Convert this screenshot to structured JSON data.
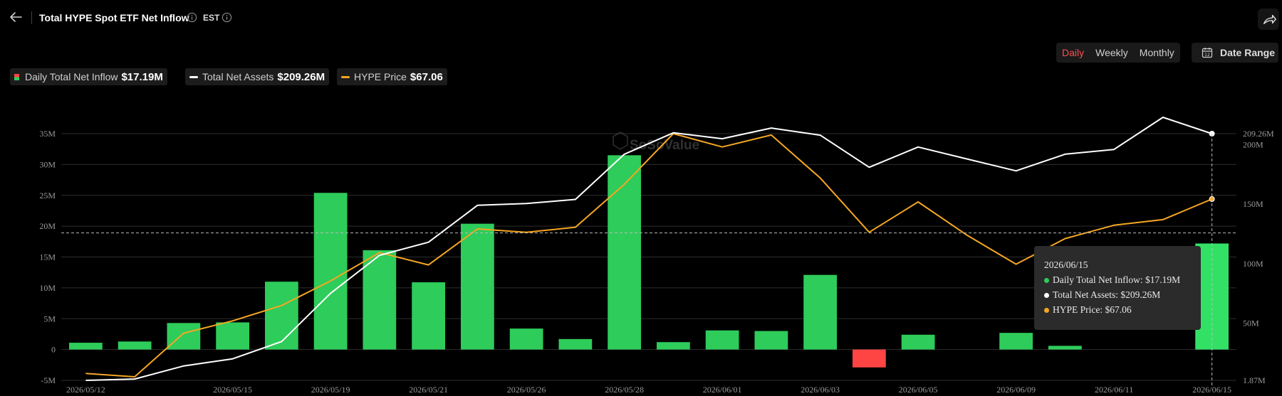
{
  "header": {
    "title": "Total HYPE Spot ETF Net Inflow",
    "timezone": "EST"
  },
  "controls": {
    "periods": [
      "Daily",
      "Weekly",
      "Monthly"
    ],
    "active_period": "Daily",
    "date_range_label": "Date Range"
  },
  "legend": [
    {
      "label": "Daily Total Net Inflow",
      "value": "$17.19M"
    },
    {
      "label": "Total Net Assets",
      "value": "$209.26M",
      "color": "#ffffff"
    },
    {
      "label": "HYPE Price",
      "value": "$67.06",
      "color": "#f5a623"
    }
  ],
  "watermark": "SoSoValue",
  "tooltip": {
    "date": "2026/06/15",
    "rows": [
      {
        "text": "Daily Total Net Inflow: $17.19M",
        "color": "#2ecc5a"
      },
      {
        "text": "Total Net Assets: $209.26M",
        "color": "#ffffff"
      },
      {
        "text": "HYPE Price: $67.06",
        "color": "#f5a623"
      }
    ]
  },
  "chart_data": {
    "type": "bar",
    "title": "Total HYPE Spot ETF Net Inflow",
    "categories": [
      "2026/05/12",
      "2026/05/13",
      "2026/05/14",
      "2026/05/15",
      "2026/05/18",
      "2026/05/19",
      "2026/05/20",
      "2026/05/21",
      "2026/05/22",
      "2026/05/26",
      "2026/05/27",
      "2026/05/28",
      "2026/05/29",
      "2026/06/01",
      "2026/06/02",
      "2026/06/03",
      "2026/06/04",
      "2026/06/05",
      "2026/06/08",
      "2026/06/09",
      "2026/06/10",
      "2026/06/11",
      "2026/06/12",
      "2026/06/15"
    ],
    "x_tick_labels": [
      "2026/05/12",
      "2026/05/15",
      "2026/05/19",
      "2026/05/21",
      "2026/05/26",
      "2026/05/28",
      "2026/06/01",
      "2026/06/03",
      "2026/06/05",
      "2026/06/09",
      "2026/06/11",
      "2026/06/15"
    ],
    "series": [
      {
        "name": "Daily Total Net Inflow",
        "type": "bar",
        "axis": "left",
        "values": [
          1.1,
          1.3,
          4.3,
          4.4,
          11.0,
          25.4,
          16.1,
          10.9,
          20.4,
          3.4,
          1.7,
          31.5,
          1.2,
          3.1,
          3.0,
          12.1,
          -2.9,
          2.4,
          0,
          2.7,
          0.6,
          0,
          0,
          17.19
        ],
        "positive_color": "#2ecc5a",
        "negative_color": "#ff4444"
      },
      {
        "name": "Total Net Assets",
        "type": "line",
        "axis": "right",
        "color": "#ffffff",
        "values": [
          1.87,
          3.0,
          14.0,
          20.0,
          34.5,
          75.0,
          107.0,
          118.0,
          149.0,
          150.5,
          154.0,
          192.0,
          210.0,
          205.0,
          214.0,
          208.0,
          181.0,
          198.0,
          188.0,
          178.0,
          192.0,
          196.0,
          223.0,
          209.26
        ]
      },
      {
        "name": "HYPE Price",
        "type": "line",
        "axis": "hidden",
        "color": "#f5a623",
        "values": [
          14.7,
          13.7,
          26.8,
          30.5,
          35.1,
          42.5,
          51.0,
          47.3,
          58.1,
          57.1,
          58.6,
          71.5,
          86.7,
          82.7,
          86.3,
          73.4,
          57.1,
          66.2,
          56.2,
          47.5,
          55.2,
          59.2,
          60.9,
          67.06
        ]
      }
    ],
    "ylim_left": [
      -5,
      35
    ],
    "yticks_left": [
      "35M",
      "30M",
      "25M",
      "20M",
      "15M",
      "10M",
      "5M",
      "0",
      "-5M"
    ],
    "ylim_right": [
      1.87,
      209.26
    ],
    "yticks_right": [
      "209.26M",
      "200M",
      "150M",
      "100M",
      "50M",
      "1.87M"
    ],
    "price_range": [
      13.7,
      86.7
    ],
    "crosshair_value": 18.9,
    "grid": true
  }
}
